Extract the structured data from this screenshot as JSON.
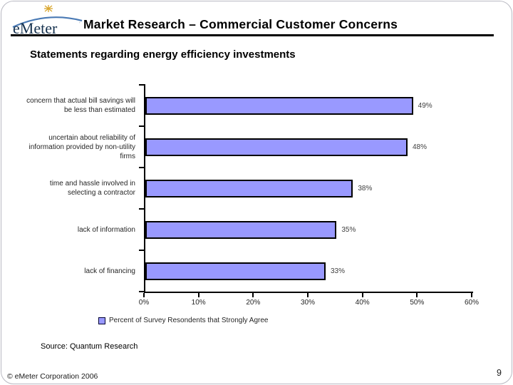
{
  "header": {
    "logo_text": "eMeter",
    "title": "Market Research – Commercial Customer Concerns"
  },
  "subtitle": "Statements regarding energy efficiency investments",
  "chart_data": {
    "type": "bar",
    "orientation": "horizontal",
    "categories": [
      "concern that actual bill savings will be less than estimated",
      "uncertain about reliability of information provided by non-utility firms",
      "time and hassle involved in selecting a contractor",
      "lack of information",
      "lack of financing"
    ],
    "values": [
      49,
      48,
      38,
      35,
      33
    ],
    "value_labels": [
      "49%",
      "48%",
      "38%",
      "35%",
      "33%"
    ],
    "x_ticks": [
      "0%",
      "10%",
      "20%",
      "30%",
      "40%",
      "50%",
      "60%"
    ],
    "xlim": [
      0,
      60
    ],
    "grid": false,
    "legend": "Percent of Survey Resondents that Strongly Agree",
    "legend_position": "bottom",
    "bar_color": "#9999FF",
    "bar_border_color": "#000000"
  },
  "source_note": "Source: Quantum Research",
  "footer": {
    "copyright": "© eMeter Corporation 2006",
    "page_number": "9"
  },
  "colors": {
    "logo_navy": "#16324f",
    "logo_arc_blue": "#4a7ab5",
    "logo_sun_gold": "#d9a62e",
    "axis": "#000000"
  }
}
